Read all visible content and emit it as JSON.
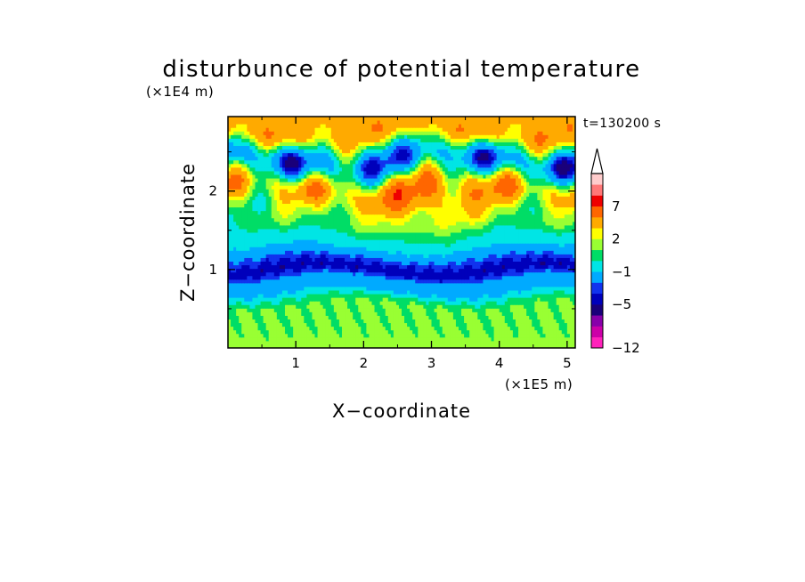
{
  "chart_data": {
    "type": "heatmap",
    "title": "disturbunce of potential temperature",
    "xlabel": "X−coordinate",
    "ylabel": "Z−coordinate",
    "x_scale_label": "(×1E5 m)",
    "y_scale_label": "(×1E4 m)",
    "time_label": "t=130200 s",
    "xlim": [
      0,
      5.12
    ],
    "ylim": [
      0,
      2.95
    ],
    "x_ticks": [
      {
        "value": 1,
        "label": "1"
      },
      {
        "value": 2,
        "label": "2"
      },
      {
        "value": 3,
        "label": "3"
      },
      {
        "value": 4,
        "label": "4"
      },
      {
        "value": 5,
        "label": "5"
      }
    ],
    "y_ticks": [
      {
        "value": 1,
        "label": "1"
      },
      {
        "value": 2,
        "label": "2"
      }
    ],
    "colorbar": {
      "levels": [
        -12,
        -10,
        -8,
        -6,
        -5,
        -4,
        -3,
        -1,
        0,
        1,
        2,
        3,
        5,
        7,
        8,
        9,
        10
      ],
      "colors": [
        "#ff22bb",
        "#cc00a8",
        "#8800aa",
        "#1a007a",
        "#0000bb",
        "#1133ee",
        "#00aaff",
        "#00e5e5",
        "#00dd66",
        "#99ff33",
        "#ffff00",
        "#ffaa00",
        "#ff6600",
        "#ee0000",
        "#ff7777",
        "#ffcccc"
      ],
      "extend_top_color": "#ffffff",
      "tick_labels": [
        {
          "value": -12,
          "label": "−12"
        },
        {
          "value": -5,
          "label": "−5"
        },
        {
          "value": -1,
          "label": "−1"
        },
        {
          "value": 2,
          "label": "2"
        },
        {
          "value": 7,
          "label": "7"
        }
      ]
    },
    "structure": {
      "nx": 128,
      "nz": 64,
      "layers": [
        {
          "z": 0.1,
          "value": 1.4,
          "label": "near-surface green/yellow"
        },
        {
          "z": 0.5,
          "value": 1.2,
          "label": "lower green band"
        },
        {
          "z": 0.8,
          "value": -1.6,
          "label": "cyan"
        },
        {
          "z": 1.0,
          "value": -4.6,
          "label": "dark blue band"
        },
        {
          "z": 1.35,
          "value": -0.6,
          "label": "cyan/green"
        },
        {
          "z": 1.65,
          "value": 0.9,
          "label": "green"
        },
        {
          "z": 2.0,
          "value": 3.2,
          "label": "orange wave band"
        },
        {
          "z": 2.4,
          "value": -2.5,
          "label": "blue wave band"
        },
        {
          "z": 2.8,
          "value": 4.0,
          "label": "upper orange"
        }
      ],
      "warm_dome": {
        "x_center": 3.0,
        "z_center": 1.9,
        "x_width": 1.1,
        "z_width": 0.45,
        "amplitude": 2.0
      }
    }
  }
}
